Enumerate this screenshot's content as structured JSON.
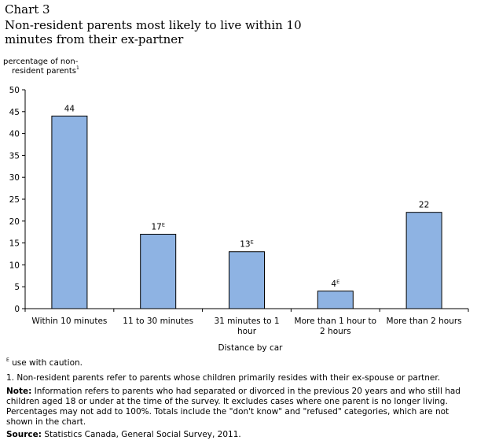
{
  "header": {
    "chart_number": "Chart 3",
    "title": "Non-resident parents most likely to live within 10 minutes from their ex-partner"
  },
  "colors": {
    "bar_fill": "#8eb3e3",
    "bar_stroke": "#000000",
    "axis": "#000000"
  },
  "chart_data": {
    "type": "bar",
    "title": "Non-resident parents most likely to live within 10 minutes from their ex-partner",
    "ylabel_line1": "percentage of non-",
    "ylabel_line2": "resident parents",
    "ylabel_superscript": "1",
    "xlabel": "Distance by car",
    "categories": [
      [
        "Within 10 minutes"
      ],
      [
        "11 to 30 minutes"
      ],
      [
        "31 minutes to 1",
        "hour"
      ],
      [
        "More than 1 hour to",
        "2 hours"
      ],
      [
        "More than 2 hours"
      ]
    ],
    "values": [
      44,
      17,
      13,
      4,
      22
    ],
    "data_labels": [
      "44",
      "17",
      "13",
      "4",
      "22"
    ],
    "quality_flags": [
      "",
      "E",
      "E",
      "E",
      ""
    ],
    "ylim": [
      0,
      50
    ],
    "yticks": [
      0,
      5,
      10,
      15,
      20,
      25,
      30,
      35,
      40,
      45,
      50
    ],
    "grid": false,
    "legend": "none"
  },
  "footnotes": {
    "caution_symbol": "E",
    "caution_text": " use with caution.",
    "note1": "1. Non-resident parents refer to parents whose children primarily resides with their ex-spouse or partner.",
    "note_label": "Note:",
    "note_text": " Information refers to parents who had separated or divorced in the previous 20 years and who still had children aged 18 or under at the time of the survey. It excludes cases where one parent is no longer living. Percentages may not add to 100%. Totals include the \"don't know\" and \"refused\" categories, which are not shown in the chart.",
    "source_label": "Source:",
    "source_text": " Statistics Canada, General Social Survey, 2011."
  }
}
